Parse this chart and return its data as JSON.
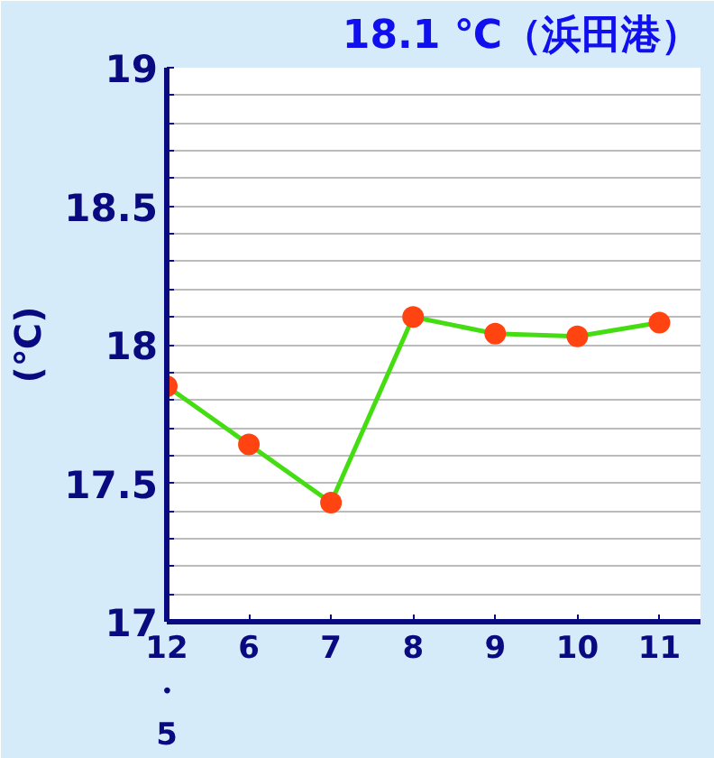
{
  "chart_data": {
    "type": "line",
    "title": "18.1 ℃（浜田港）",
    "ylabel": "(℃)",
    "categories": [
      "12\n・\n5",
      "6",
      "7",
      "8",
      "9",
      "10",
      "11"
    ],
    "series": [
      {
        "color": "#44dd11",
        "colors": [
          "#ff4411",
          "#ff4411",
          "#ff4411",
          "#ff4411",
          "#ff4411",
          "#ff4411",
          "#ff4411"
        ],
        "values": [
          17.85,
          17.64,
          17.43,
          18.1,
          18.04,
          18.03,
          18.08
        ]
      }
    ],
    "ylim": [
      17,
      19
    ],
    "yticks": [
      17,
      {
        "value": 17.1,
        "label": null
      },
      {
        "value": 17.2,
        "label": null
      },
      {
        "value": 17.3,
        "label": null
      },
      {
        "value": 17.4,
        "label": null
      },
      17.5,
      {
        "value": 17.6,
        "label": null
      },
      {
        "value": 17.7,
        "label": null
      },
      {
        "value": 17.8,
        "label": null
      },
      {
        "value": 17.9,
        "label": null
      },
      18,
      {
        "value": 18.1,
        "label": null
      },
      {
        "value": 18.2,
        "label": null
      },
      {
        "value": 18.3,
        "label": null
      },
      {
        "value": 18.4,
        "label": null
      },
      18.5,
      {
        "value": 18.6,
        "label": null
      },
      {
        "value": 18.7,
        "label": null
      },
      {
        "value": 18.8,
        "label": null
      },
      {
        "value": 18.9,
        "label": null
      },
      19
    ],
    "grid": "y",
    "marker": "circle",
    "line_style": "solid"
  }
}
